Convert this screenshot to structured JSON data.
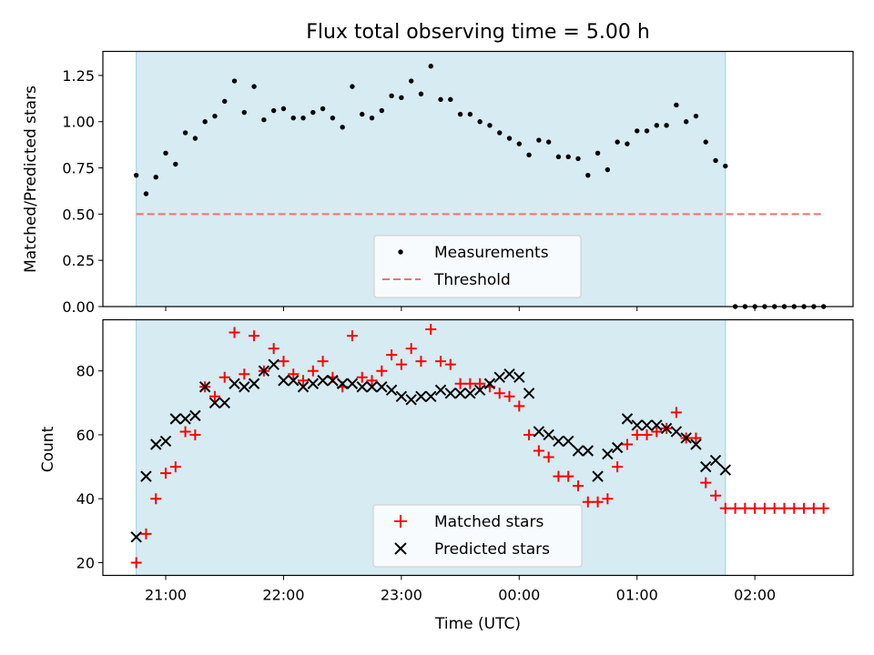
{
  "chart_data": [
    {
      "type": "scatter",
      "title": "Flux total observing time = 5.00 h",
      "ylabel": "Matched/Predicted stars",
      "xlabel": "",
      "ylim": [
        0,
        1.38
      ],
      "yticks": [
        "0.00",
        "0.25",
        "0.50",
        "0.75",
        "1.00",
        "1.25"
      ],
      "legend_position": "lower center",
      "shaded_span": [
        "20:45",
        "01:45"
      ],
      "threshold": {
        "name": "Threshold",
        "value": 0.5,
        "x_range": [
          "20:45",
          "02:35"
        ],
        "color": "#f07070"
      },
      "series": [
        {
          "name": "Measurements",
          "color": "#000000",
          "x": [
            "20:45",
            "20:50",
            "20:55",
            "21:00",
            "21:05",
            "21:10",
            "21:15",
            "21:20",
            "21:25",
            "21:30",
            "21:35",
            "21:40",
            "21:45",
            "21:50",
            "21:55",
            "22:00",
            "22:05",
            "22:10",
            "22:15",
            "22:20",
            "22:25",
            "22:30",
            "22:35",
            "22:40",
            "22:45",
            "22:50",
            "22:55",
            "23:00",
            "23:05",
            "23:10",
            "23:15",
            "23:20",
            "23:25",
            "23:30",
            "23:35",
            "23:40",
            "23:45",
            "23:50",
            "23:55",
            "00:00",
            "00:05",
            "00:10",
            "00:15",
            "00:20",
            "00:25",
            "00:30",
            "00:35",
            "00:40",
            "00:45",
            "00:50",
            "00:55",
            "01:00",
            "01:05",
            "01:10",
            "01:15",
            "01:20",
            "01:25",
            "01:30",
            "01:35",
            "01:40",
            "01:45",
            "01:50",
            "01:55",
            "02:00",
            "02:05",
            "02:10",
            "02:15",
            "02:20",
            "02:25",
            "02:30",
            "02:35"
          ],
          "y": [
            0.71,
            0.61,
            0.7,
            0.83,
            0.77,
            0.94,
            0.91,
            1.0,
            1.03,
            1.11,
            1.22,
            1.05,
            1.19,
            1.01,
            1.06,
            1.07,
            1.02,
            1.02,
            1.05,
            1.07,
            1.02,
            0.97,
            1.19,
            1.04,
            1.02,
            1.06,
            1.14,
            1.13,
            1.22,
            1.15,
            1.3,
            1.12,
            1.12,
            1.04,
            1.04,
            1.0,
            0.98,
            0.94,
            0.91,
            0.88,
            0.82,
            0.9,
            0.89,
            0.81,
            0.81,
            0.8,
            0.71,
            0.83,
            0.74,
            0.89,
            0.88,
            0.95,
            0.95,
            0.98,
            0.98,
            1.09,
            1.0,
            1.03,
            0.89,
            0.79,
            0.76,
            0,
            0,
            0,
            0,
            0,
            0,
            0,
            0,
            0,
            0
          ]
        }
      ]
    },
    {
      "type": "scatter",
      "title": "",
      "xlabel": "Time (UTC)",
      "ylabel": "Count",
      "ylim": [
        16,
        96
      ],
      "yticks": [
        "20",
        "40",
        "60",
        "80"
      ],
      "xticks": [
        "21:00",
        "22:00",
        "23:00",
        "00:00",
        "01:00",
        "02:00"
      ],
      "legend_position": "lower center",
      "shaded_span": [
        "20:45",
        "01:45"
      ],
      "series": [
        {
          "name": "Matched stars",
          "color": "#ff0000",
          "marker": "+",
          "x": [
            "20:45",
            "20:50",
            "20:55",
            "21:00",
            "21:05",
            "21:10",
            "21:15",
            "21:20",
            "21:25",
            "21:30",
            "21:35",
            "21:40",
            "21:45",
            "21:50",
            "21:55",
            "22:00",
            "22:05",
            "22:10",
            "22:15",
            "22:20",
            "22:25",
            "22:30",
            "22:35",
            "22:40",
            "22:45",
            "22:50",
            "22:55",
            "23:00",
            "23:05",
            "23:10",
            "23:15",
            "23:20",
            "23:25",
            "23:30",
            "23:35",
            "23:40",
            "23:45",
            "23:50",
            "23:55",
            "00:00",
            "00:05",
            "00:10",
            "00:15",
            "00:20",
            "00:25",
            "00:30",
            "00:35",
            "00:40",
            "00:45",
            "00:50",
            "00:55",
            "01:00",
            "01:05",
            "01:10",
            "01:15",
            "01:20",
            "01:25",
            "01:30",
            "01:35",
            "01:40",
            "01:45",
            "01:50",
            "01:55",
            "02:00",
            "02:05",
            "02:10",
            "02:15",
            "02:20",
            "02:25",
            "02:30",
            "02:35"
          ],
          "y": [
            20,
            29,
            40,
            48,
            50,
            61,
            60,
            75,
            72,
            78,
            92,
            79,
            91,
            80,
            87,
            83,
            79,
            77,
            80,
            83,
            78,
            75,
            91,
            78,
            77,
            80,
            85,
            82,
            87,
            83,
            93,
            83,
            82,
            76,
            76,
            76,
            75,
            73,
            72,
            69,
            60,
            55,
            53,
            47,
            47,
            44,
            39,
            39,
            40,
            50,
            57,
            60,
            60,
            61,
            62,
            67,
            59,
            59,
            45,
            41,
            37,
            37,
            37,
            37,
            37,
            37,
            37,
            37,
            37,
            37,
            37
          ]
        },
        {
          "name": "Predicted stars",
          "color": "#000000",
          "marker": "x",
          "x": [
            "20:45",
            "20:50",
            "20:55",
            "21:00",
            "21:05",
            "21:10",
            "21:15",
            "21:20",
            "21:25",
            "21:30",
            "21:35",
            "21:40",
            "21:45",
            "21:50",
            "21:55",
            "22:00",
            "22:05",
            "22:10",
            "22:15",
            "22:20",
            "22:25",
            "22:30",
            "22:35",
            "22:40",
            "22:45",
            "22:50",
            "22:55",
            "23:00",
            "23:05",
            "23:10",
            "23:15",
            "23:20",
            "23:25",
            "23:30",
            "23:35",
            "23:40",
            "23:45",
            "23:50",
            "23:55",
            "00:00",
            "00:05",
            "00:10",
            "00:15",
            "00:20",
            "00:25",
            "00:30",
            "00:35",
            "00:40",
            "00:45",
            "00:50",
            "00:55",
            "01:00",
            "01:05",
            "01:10",
            "01:15",
            "01:20",
            "01:25",
            "01:30",
            "01:35",
            "01:40",
            "01:45"
          ],
          "y": [
            28,
            47,
            57,
            58,
            65,
            65,
            66,
            75,
            70,
            70,
            76,
            75,
            76,
            80,
            82,
            77,
            77,
            75,
            76,
            77,
            77,
            76,
            76,
            75,
            75,
            75,
            74,
            72,
            71,
            72,
            72,
            74,
            73,
            73,
            73,
            74,
            76,
            78,
            79,
            78,
            73,
            61,
            60,
            58,
            58,
            55,
            55,
            47,
            54,
            56,
            65,
            63,
            63,
            63,
            62,
            61,
            59,
            57,
            50,
            52,
            49
          ]
        }
      ]
    }
  ]
}
